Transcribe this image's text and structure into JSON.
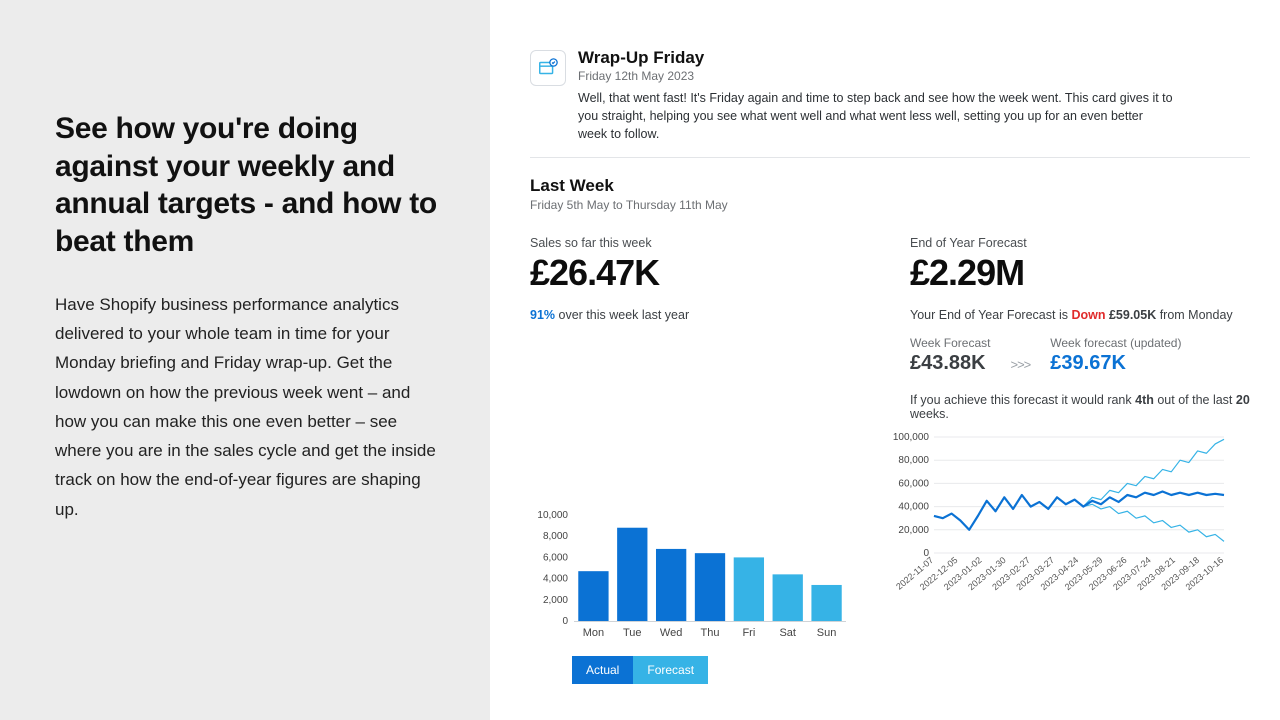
{
  "left": {
    "heading": "See how you're doing against your weekly and annual targets - and how to beat them",
    "body": "Have Shopify business performance analytics delivered to your whole team in time for your Monday briefing and Friday wrap-up.  Get the lowdown on how the previous week went – and how you can make this one even better – see where you are in the sales cycle and get the inside track on how the end-of-year figures are shaping up."
  },
  "card": {
    "title": "Wrap-Up Friday",
    "date": "Friday 12th May 2023",
    "description": "Well, that went fast! It's Friday again and time to step back and see how the week went. This card gives it to you straight, helping you see what went well and what went less well, setting you up for an even better week to follow."
  },
  "section": {
    "title": "Last Week",
    "subtitle": "Friday 5th May to Thursday 11th May"
  },
  "sales": {
    "label": "Sales so far this week",
    "value": "£26.47K",
    "delta_pct": "91%",
    "delta_tail": " over this week last year"
  },
  "forecast": {
    "label": "End of Year Forecast",
    "value": "£2.29M",
    "note_prefix": "Your End of Year Forecast is ",
    "note_direction": "Down",
    "note_amount": "£59.05K",
    "note_tail": " from Monday",
    "week_label": "Week Forecast",
    "week_value": "£43.88K",
    "updated_label": "Week forecast (updated)",
    "updated_value": "£39.67K",
    "rank_prefix": "If you achieve this forecast it would rank ",
    "rank_bold1": "4th",
    "rank_mid": " out of the last ",
    "rank_bold2": "20",
    "rank_tail": " weeks."
  },
  "bar_chart": {
    "type": "bar",
    "categories": [
      "Mon",
      "Tue",
      "Wed",
      "Thu",
      "Fri",
      "Sat",
      "Sun"
    ],
    "values": [
      4700,
      8800,
      6800,
      6400,
      6000,
      4400,
      3400
    ],
    "actual_count": 4,
    "color_actual": "#0b72d4",
    "color_forecast": "#36b3e6",
    "ylim": [
      0,
      10000
    ],
    "ytick_step": 2000,
    "label_fontsize": 10,
    "grid_color": "#ffffff",
    "bar_width": 0.78,
    "legend": {
      "actual": "Actual",
      "forecast": "Forecast"
    }
  },
  "line_chart": {
    "type": "line",
    "x_labels": [
      "2022-11-07",
      "2022-12-05",
      "2023-01-02",
      "2023-01-30",
      "2023-02-27",
      "2023-03-27",
      "2023-04-24",
      "2023-05-29",
      "2023-06-26",
      "2023-07-24",
      "2023-08-21",
      "2023-09-18",
      "2023-10-16"
    ],
    "ylim": [
      0,
      100000
    ],
    "ytick_step": 20000,
    "ytick_labels": [
      "0",
      "20,000",
      "40,000",
      "60,000",
      "80,000",
      "100,000"
    ],
    "series_mid": [
      32000,
      30000,
      34000,
      28000,
      20000,
      32000,
      45000,
      36000,
      48000,
      38000,
      50000,
      40000,
      44000,
      38000,
      48000,
      42000,
      46000,
      40000,
      45000,
      42000,
      48000,
      44000,
      50000,
      48000,
      52000,
      50000,
      53000,
      50000,
      52000,
      50000,
      52000,
      50000,
      51000,
      50000
    ],
    "series_hi": [
      32000,
      30000,
      34000,
      28000,
      20000,
      32000,
      45000,
      36000,
      48000,
      38000,
      50000,
      40000,
      44000,
      38000,
      48000,
      42000,
      46000,
      40000,
      48000,
      46000,
      54000,
      52000,
      60000,
      58000,
      66000,
      64000,
      72000,
      70000,
      80000,
      78000,
      88000,
      86000,
      94000,
      98000
    ],
    "series_lo": [
      32000,
      30000,
      34000,
      28000,
      20000,
      32000,
      45000,
      36000,
      48000,
      38000,
      50000,
      40000,
      44000,
      38000,
      48000,
      42000,
      46000,
      40000,
      42000,
      38000,
      40000,
      34000,
      36000,
      30000,
      32000,
      26000,
      28000,
      22000,
      24000,
      18000,
      20000,
      14000,
      16000,
      10000
    ],
    "color_line": "#0b72d4",
    "color_band": "#36b3e6",
    "line_width_mid": 2.2,
    "line_width_band": 1.2,
    "grid_color": "#e8eaec"
  },
  "colors": {
    "left_bg": "#ececec",
    "text": "#111111",
    "muted": "#6c6f73",
    "blue": "#0b72d4",
    "red": "#e02b2b"
  }
}
